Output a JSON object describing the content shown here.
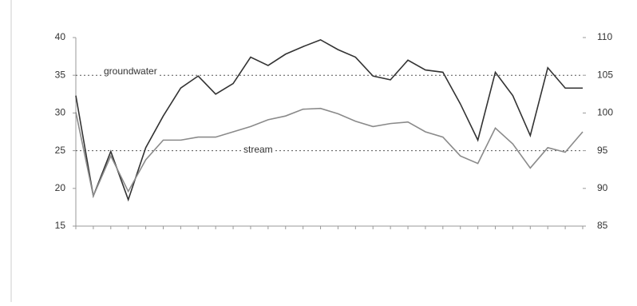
{
  "chart_data": {
    "type": "line",
    "categories": [
      null,
      null,
      null,
      null,
      null,
      null,
      null,
      null,
      null,
      null,
      null,
      null,
      null,
      null,
      null,
      null,
      null,
      null,
      null,
      null,
      null,
      null,
      null,
      null,
      null,
      null,
      null,
      null,
      null,
      null
    ],
    "series": [
      {
        "name": "groundwater",
        "color": "#333333",
        "axis": "y2",
        "values": [
          102.3,
          89.0,
          94.9,
          88.5,
          95.4,
          99.6,
          103.3,
          104.9,
          102.5,
          103.9,
          107.4,
          106.3,
          107.8,
          108.8,
          109.7,
          108.4,
          107.4,
          104.9,
          104.4,
          107.0,
          105.7,
          105.4,
          101.2,
          96.4,
          105.4,
          102.3,
          97.0,
          106.0,
          103.3,
          103.3
        ]
      },
      {
        "name": "stream",
        "color": "#8a8a8a",
        "values": [
          30.1,
          19.0,
          24.3,
          19.6,
          23.8,
          26.4,
          26.4,
          26.8,
          26.8,
          27.5,
          28.2,
          29.1,
          29.6,
          30.5,
          30.6,
          29.9,
          28.9,
          28.2,
          28.6,
          28.8,
          27.5,
          26.8,
          24.3,
          23.3,
          28.0,
          25.9,
          22.7,
          25.4,
          24.8,
          27.5
        ]
      }
    ],
    "ylim": [
      15,
      40
    ],
    "yticks": [
      15,
      20,
      25,
      30,
      35,
      40
    ],
    "y2lim": [
      85,
      110
    ],
    "y2ticks": [
      85,
      90,
      95,
      100,
      105,
      110
    ],
    "reference_lines": [
      35,
      25
    ]
  }
}
